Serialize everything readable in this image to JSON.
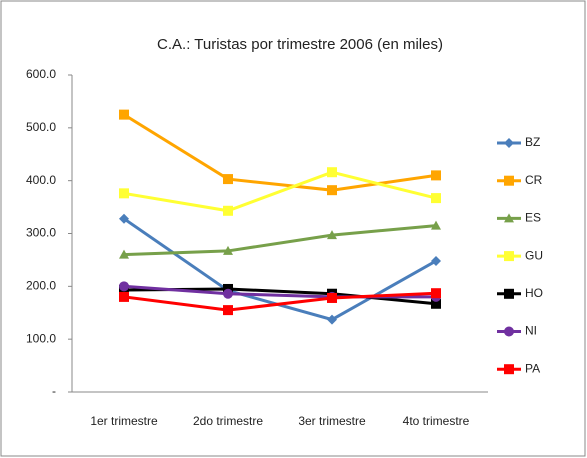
{
  "chart_data": {
    "type": "line",
    "title": "C.A.: Turistas por trimestre 2006 (en miles)",
    "categories": [
      "1er trimestre",
      "2do trimestre",
      "3er trimestre",
      "4to trimestre"
    ],
    "ylim": [
      0,
      600
    ],
    "yticks": [
      {
        "value": 0,
        "label": "-"
      },
      {
        "value": 100,
        "label": "100.0"
      },
      {
        "value": 200,
        "label": "200.0"
      },
      {
        "value": 300,
        "label": "300.0"
      },
      {
        "value": 400,
        "label": "400.0"
      },
      {
        "value": 500,
        "label": "500.0"
      },
      {
        "value": 600,
        "label": "600.0"
      }
    ],
    "legend": "right",
    "series": [
      {
        "name": "BZ",
        "color": "#4a7ebb",
        "marker": "diamond",
        "values": [
          328,
          192,
          137,
          248
        ]
      },
      {
        "name": "CR",
        "color": "#ffa500",
        "marker": "square",
        "values": [
          525,
          403,
          382,
          410
        ]
      },
      {
        "name": "ES",
        "color": "#77a04a",
        "marker": "triangle",
        "values": [
          260,
          267,
          297,
          315
        ]
      },
      {
        "name": "GU",
        "color": "#ffff33",
        "marker": "square",
        "values": [
          376,
          343,
          416,
          367
        ]
      },
      {
        "name": "HO",
        "color": "#000000",
        "marker": "square",
        "values": [
          193,
          195,
          186,
          167
        ]
      },
      {
        "name": "NI",
        "color": "#7030a0",
        "marker": "circle",
        "values": [
          200,
          186,
          180,
          180
        ]
      },
      {
        "name": "PA",
        "color": "#ff0000",
        "marker": "square",
        "values": [
          180,
          155,
          178,
          187
        ]
      }
    ]
  }
}
